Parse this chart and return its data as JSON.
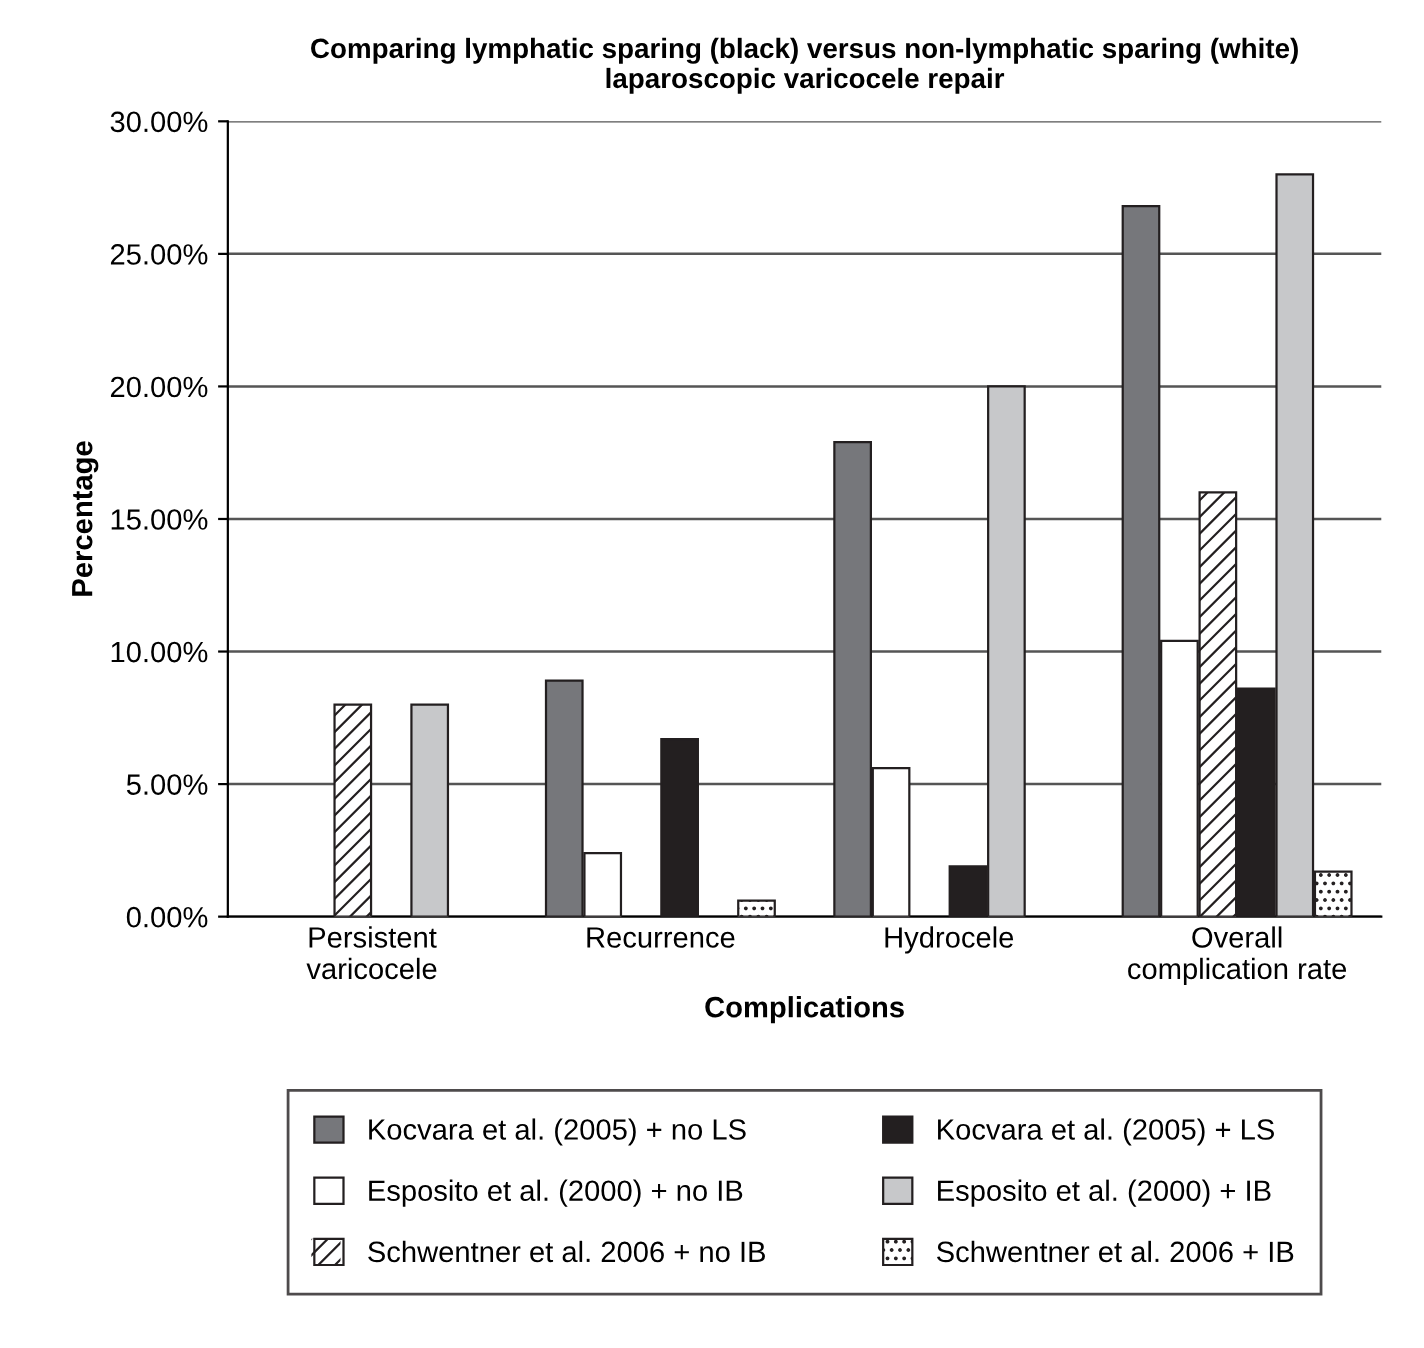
{
  "chart_data": {
    "type": "bar",
    "title": "Comparing lymphatic sparing (black) versus non-lymphatic sparing (white)\nlaparoscopic varicocele repair",
    "xlabel": "Complications",
    "ylabel": "Percentage",
    "categories": [
      "Persistent\nvaricocele",
      "Recurrence",
      "Hydrocele",
      "Overall\ncomplication rate"
    ],
    "series": [
      {
        "name": "Kocvara et al. (2005) + no LS",
        "color": "#76777b",
        "values": [
          null,
          8.9,
          17.9,
          26.8
        ]
      },
      {
        "name": "Esposito et al. (2000) + no IB",
        "color": "#ffffff",
        "values": [
          null,
          2.4,
          5.6,
          10.4
        ]
      },
      {
        "name": "Schwentner et al. 2006 + no IB",
        "color": "#ffffff",
        "values": [
          8.0,
          null,
          null,
          16.0
        ]
      },
      {
        "name": "Kocvara et al. (2005) + LS",
        "color": "#231f20",
        "values": [
          null,
          6.7,
          1.9,
          8.6
        ]
      },
      {
        "name": "Esposito et al. (2000) + IB",
        "color": "#c7c8ca",
        "values": [
          8.0,
          null,
          20.0,
          28.0
        ]
      },
      {
        "name": "Schwentner et al. 2006 + IB",
        "color": "#ffffff",
        "values": [
          null,
          0.6,
          null,
          1.7
        ]
      }
    ],
    "ylim": [
      0,
      30
    ],
    "yticks": [
      {
        "value": 0,
        "label": "0.00%"
      },
      {
        "value": 5,
        "label": "5.00%"
      },
      {
        "value": 10,
        "label": "10.00%"
      },
      {
        "value": 15,
        "label": "15.00%"
      },
      {
        "value": 20,
        "label": "20.00%"
      },
      {
        "value": 25,
        "label": "25.00%"
      },
      {
        "value": 30,
        "label": "30.00%"
      }
    ],
    "grid": "y",
    "legend": "bottom"
  }
}
